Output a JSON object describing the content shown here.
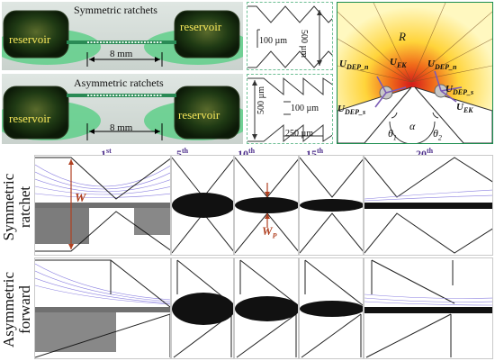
{
  "photos": {
    "top_title": "Symmetric ratchets",
    "bottom_title": "Asymmetric ratchets",
    "reservoir_label": "reservoir",
    "length_label": "8 mm"
  },
  "dims": {
    "sym_width": "100 µm",
    "sym_height": "500 µm",
    "asym_height": "500 µm",
    "asym_width": "100 µm",
    "asym_pitch": "250 µm"
  },
  "forces": {
    "R": "R",
    "U_EK_top": "U",
    "U_EK_top_sub": "EK",
    "U_DEP_n_left": "U",
    "U_DEP_n_left_sub": "DEP_n",
    "U_DEP_n_right": "U",
    "U_DEP_n_right_sub": "DEP_n",
    "U_DEP_s_left": "U",
    "U_DEP_s_left_sub": "DEP_s",
    "U_DEP_s_right": "U",
    "U_DEP_s_right_sub": "DEP_s",
    "U_EK_right": "U",
    "U_EK_right_sub": "EK",
    "alpha": "α",
    "theta1": "θ",
    "theta1_sub": "1",
    "theta2": "θ",
    "theta2_sub": "2"
  },
  "frames": [
    {
      "n": "1",
      "suffix": "st"
    },
    {
      "n": "5",
      "suffix": "th"
    },
    {
      "n": "10",
      "suffix": "th"
    },
    {
      "n": "15",
      "suffix": "th"
    },
    {
      "n": "20",
      "suffix": "th"
    }
  ],
  "rows": {
    "sym_line1": "Symmetric",
    "sym_line2": "ratchet",
    "asym_line1": "Asymmetric",
    "asym_line2": "forward"
  },
  "annotations": {
    "W": "W",
    "Wp": "W",
    "Wp_sub": "P"
  },
  "colors": {
    "green": "#1a8d4e",
    "purple_label": "#4b2c8a",
    "arrow_red": "#b04020",
    "streamline": "#8a7fe0"
  }
}
